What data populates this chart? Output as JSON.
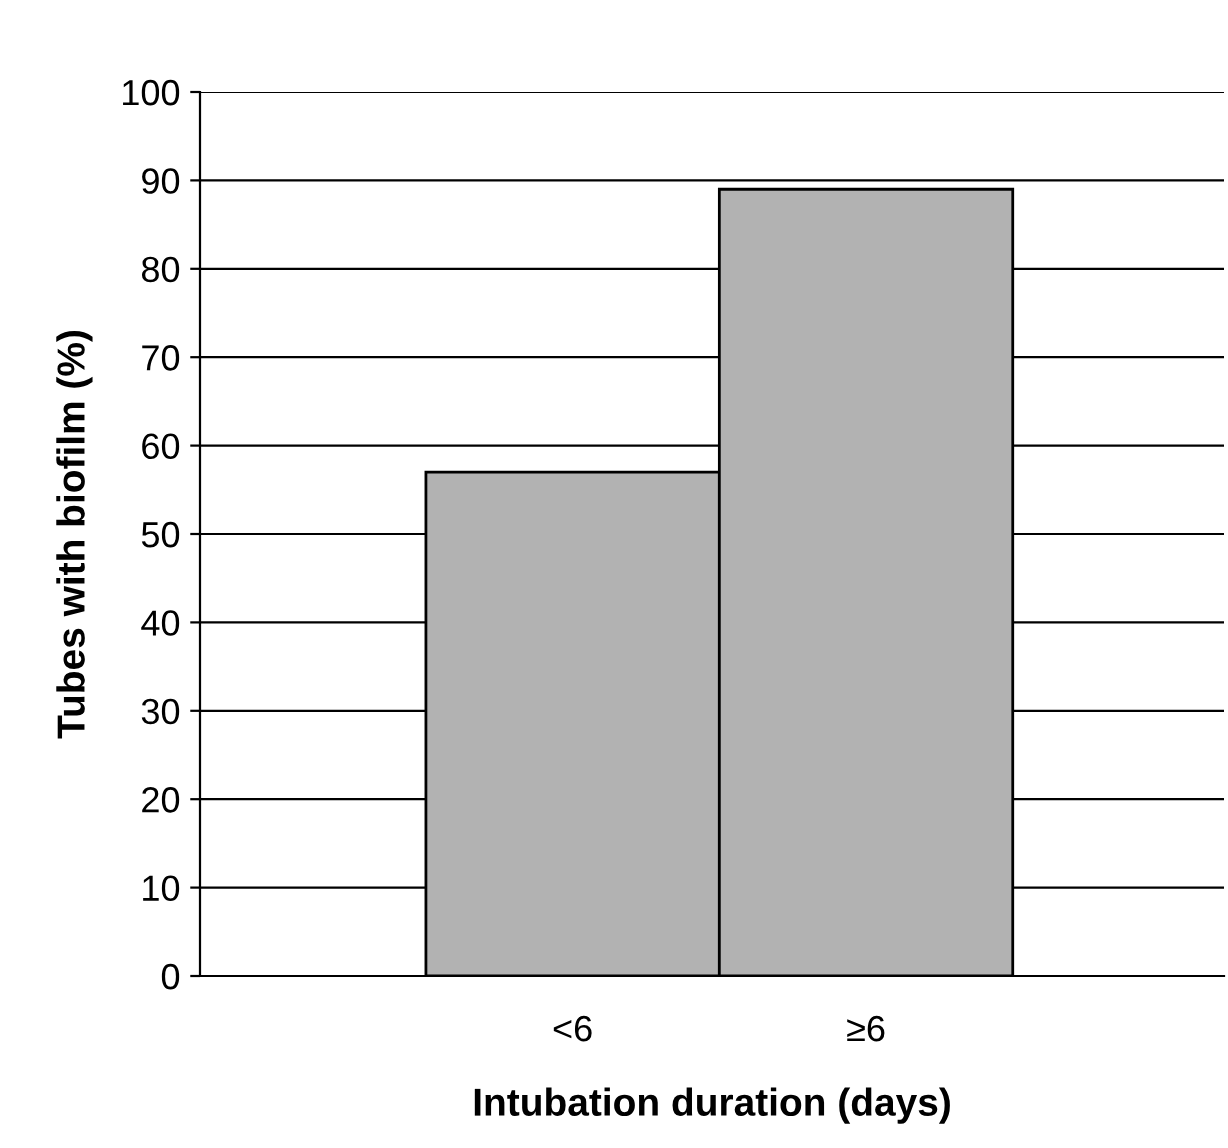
{
  "chart_data": {
    "type": "bar",
    "xlabel": "Intubation duration (days)",
    "ylabel": "Tubes with biofilm (%)",
    "categories": [
      "<6",
      "≥6"
    ],
    "values": [
      57,
      89
    ],
    "color": "#b2b2b2",
    "ylim": [
      0,
      100
    ],
    "yticks": [
      0,
      10,
      20,
      30,
      40,
      50,
      60,
      70,
      80,
      90,
      100
    ],
    "grid": "y"
  }
}
